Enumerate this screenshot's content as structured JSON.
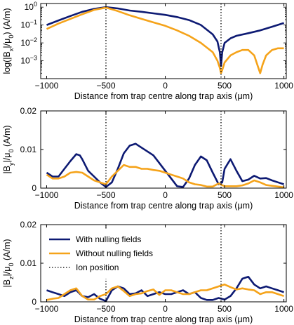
{
  "chart_data": [
    {
      "type": "line",
      "xlabel": "Distance from trap centre along trap axis (μm)",
      "ylabel": "log(|B_x|/μ_0) (A/m)",
      "yscale": "log",
      "xlim": [
        -1050,
        1020
      ],
      "ylim": [
        0.0001,
        1.6
      ],
      "xticks": [
        -1000,
        -500,
        0,
        500,
        1000
      ],
      "xtick_labels": [
        "−1000",
        "−500",
        "0",
        "500",
        "1000"
      ],
      "yticks": [
        0.001,
        0.01,
        0.1,
        1
      ],
      "series": [
        {
          "name": "With nulling fields",
          "color": "#0d1a73",
          "x": [
            -1000,
            -900,
            -800,
            -700,
            -600,
            -500,
            -400,
            -300,
            -200,
            -100,
            0,
            100,
            200,
            300,
            400,
            440,
            460,
            470,
            480,
            500,
            550,
            600,
            700,
            800,
            900,
            1000
          ],
          "y": [
            0.1,
            0.18,
            0.32,
            0.55,
            0.8,
            1.0,
            0.85,
            0.65,
            0.55,
            0.45,
            0.37,
            0.28,
            0.19,
            0.1,
            0.03,
            0.012,
            0.003,
            0.0005,
            0.003,
            0.01,
            0.018,
            0.025,
            0.035,
            0.05,
            0.08,
            0.13
          ]
        },
        {
          "name": "Without nulling fields",
          "color": "#f5a31a",
          "x": [
            -1000,
            -900,
            -800,
            -700,
            -600,
            -500,
            -400,
            -300,
            -200,
            -100,
            0,
            100,
            200,
            300,
            400,
            440,
            460,
            470,
            480,
            500,
            550,
            600,
            650,
            700,
            750,
            780,
            800,
            820,
            850,
            900,
            950,
            1000
          ],
          "y": [
            0.06,
            0.12,
            0.22,
            0.4,
            0.7,
            0.95,
            0.6,
            0.35,
            0.22,
            0.14,
            0.09,
            0.05,
            0.025,
            0.01,
            0.003,
            0.001,
            0.0004,
            0.0002,
            0.0003,
            0.0008,
            0.002,
            0.003,
            0.004,
            0.004,
            0.002,
            0.0005,
            0.0002,
            0.0006,
            0.002,
            0.004,
            0.005,
            0.005
          ]
        }
      ],
      "annotations": [
        {
          "type": "vline",
          "x": -500,
          "label": "Ion position"
        },
        {
          "type": "vline",
          "x": 470,
          "label": "Ion position"
        }
      ]
    },
    {
      "type": "line",
      "xlabel": "Distance from trap centre along trap axis (μm)",
      "ylabel": "|B_y|/μ_0 (A/m)",
      "xlim": [
        -1050,
        1020
      ],
      "ylim": [
        0,
        0.02
      ],
      "xticks": [
        -1000,
        -500,
        0,
        500,
        1000
      ],
      "xtick_labels": [
        "−1000",
        "−500",
        "0",
        "500",
        "1000"
      ],
      "yticks": [
        0,
        0.01,
        0.02
      ],
      "ytick_labels": [
        "0",
        "0.01",
        "0.02"
      ],
      "series": [
        {
          "name": "With nulling fields",
          "color": "#0d1a73",
          "x": [
            -1000,
            -950,
            -900,
            -850,
            -800,
            -750,
            -720,
            -700,
            -650,
            -600,
            -550,
            -500,
            -450,
            -400,
            -350,
            -300,
            -250,
            -200,
            -150,
            -100,
            -50,
            0,
            50,
            100,
            150,
            200,
            250,
            300,
            350,
            400,
            450,
            480,
            500,
            550,
            600,
            650,
            700,
            750,
            800,
            850,
            900,
            950,
            1000
          ],
          "y": [
            0.004,
            0.003,
            0.003,
            0.005,
            0.007,
            0.0088,
            0.0085,
            0.0075,
            0.0045,
            0.003,
            0.0015,
            0.0003,
            0.0015,
            0.005,
            0.009,
            0.011,
            0.0115,
            0.0105,
            0.0095,
            0.0085,
            0.0065,
            0.0045,
            0.0025,
            0.0005,
            0.0003,
            0.0025,
            0.006,
            0.0082,
            0.0072,
            0.004,
            0.001,
            0.0015,
            0.005,
            0.0075,
            0.0045,
            0.0018,
            0.0022,
            0.0032,
            0.0025,
            0.0026,
            0.002,
            0.0015,
            0.001
          ]
        },
        {
          "name": "Without nulling fields",
          "color": "#f5a31a",
          "x": [
            -1000,
            -950,
            -900,
            -850,
            -800,
            -750,
            -700,
            -650,
            -600,
            -550,
            -500,
            -450,
            -400,
            -350,
            -300,
            -250,
            -200,
            -150,
            -100,
            -50,
            0,
            50,
            100,
            150,
            200,
            250,
            300,
            350,
            400,
            450,
            500,
            550,
            600,
            650,
            700,
            750,
            800,
            850,
            900,
            950,
            1000
          ],
          "y": [
            0.0035,
            0.0025,
            0.0025,
            0.003,
            0.004,
            0.0042,
            0.004,
            0.003,
            0.002,
            0.0015,
            0.001,
            0.003,
            0.0045,
            0.006,
            0.0055,
            0.0055,
            0.005,
            0.005,
            0.0047,
            0.0045,
            0.004,
            0.0035,
            0.003,
            0.0025,
            0.0015,
            0.001,
            0.0008,
            0.0004,
            0.0004,
            0.0012,
            0.0005,
            0.0005,
            0.0005,
            0.0007,
            0.0012,
            0.002,
            0.0015,
            0.0008,
            0.0006,
            0.0004,
            0.0002
          ]
        }
      ],
      "annotations": [
        {
          "type": "vline",
          "x": -500,
          "label": "Ion position"
        },
        {
          "type": "vline",
          "x": 470,
          "label": "Ion position"
        }
      ]
    },
    {
      "type": "line",
      "xlabel": "Distance from trap centre along trap axis (μm)",
      "ylabel": "|B_z|/μ_0 (A/m)",
      "xlim": [
        -1050,
        1020
      ],
      "ylim": [
        0,
        0.02
      ],
      "xticks": [
        -1000,
        -500,
        0,
        500,
        1000
      ],
      "xtick_labels": [
        "−1000",
        "−500",
        "0",
        "500",
        "1000"
      ],
      "yticks": [
        0,
        0.01,
        0.02
      ],
      "ytick_labels": [
        "0",
        "0.01",
        "0.02"
      ],
      "legend": {
        "placement": "top-left",
        "entries": [
          {
            "label": "With nulling fields",
            "color": "#0d1a73",
            "style": "solid"
          },
          {
            "label": "Without nulling fields",
            "color": "#f5a31a",
            "style": "solid"
          },
          {
            "label": "Ion position",
            "color": "#000000",
            "style": "dotted"
          }
        ]
      },
      "series": [
        {
          "name": "With nulling fields",
          "color": "#0d1a73",
          "x": [
            -1000,
            -950,
            -900,
            -850,
            -800,
            -750,
            -700,
            -650,
            -600,
            -550,
            -500,
            -450,
            -400,
            -350,
            -300,
            -250,
            -200,
            -150,
            -100,
            -50,
            0,
            50,
            100,
            150,
            200,
            250,
            300,
            350,
            400,
            450,
            500,
            550,
            600,
            650,
            700,
            750,
            800,
            850,
            900,
            950,
            1000
          ],
          "y": [
            0.003,
            0.0025,
            0.002,
            0.0015,
            0.0025,
            0.003,
            0.0015,
            0.0012,
            0.002,
            0.0008,
            0.0002,
            0.003,
            0.004,
            0.0035,
            0.002,
            0.0022,
            0.003,
            0.0015,
            0.002,
            0.0025,
            0.002,
            0.002,
            0.0025,
            0.003,
            0.002,
            0.0025,
            0.001,
            0.0005,
            0.0005,
            0.001,
            0.0006,
            0.0015,
            0.0035,
            0.006,
            0.0065,
            0.0045,
            0.0035,
            0.004,
            0.0035,
            0.003,
            0.0025
          ]
        },
        {
          "name": "Without nulling fields",
          "color": "#f5a31a",
          "x": [
            -1000,
            -950,
            -900,
            -850,
            -800,
            -750,
            -700,
            -650,
            -600,
            -550,
            -500,
            -450,
            -400,
            -350,
            -300,
            -250,
            -200,
            -150,
            -100,
            -50,
            0,
            50,
            100,
            150,
            200,
            250,
            300,
            350,
            400,
            450,
            500,
            550,
            600,
            650,
            700,
            750,
            800,
            850,
            900,
            950,
            1000
          ],
          "y": [
            0.0005,
            0.0008,
            0.001,
            0.002,
            0.003,
            0.0035,
            0.0015,
            0.0006,
            0.0006,
            0.0015,
            0.002,
            0.0035,
            0.004,
            0.0028,
            0.0015,
            0.002,
            0.0022,
            0.0028,
            0.0032,
            0.0018,
            0.003,
            0.003,
            0.0025,
            0.002,
            0.002,
            0.0025,
            0.003,
            0.003,
            0.0035,
            0.004,
            0.0045,
            0.0038,
            0.0032,
            0.0035,
            0.0032,
            0.003,
            0.002,
            0.0025,
            0.0025,
            0.002,
            0.0015
          ]
        }
      ],
      "annotations": [
        {
          "type": "vline",
          "x": -500,
          "label": "Ion position"
        },
        {
          "type": "vline",
          "x": 470,
          "label": "Ion position"
        }
      ]
    }
  ]
}
